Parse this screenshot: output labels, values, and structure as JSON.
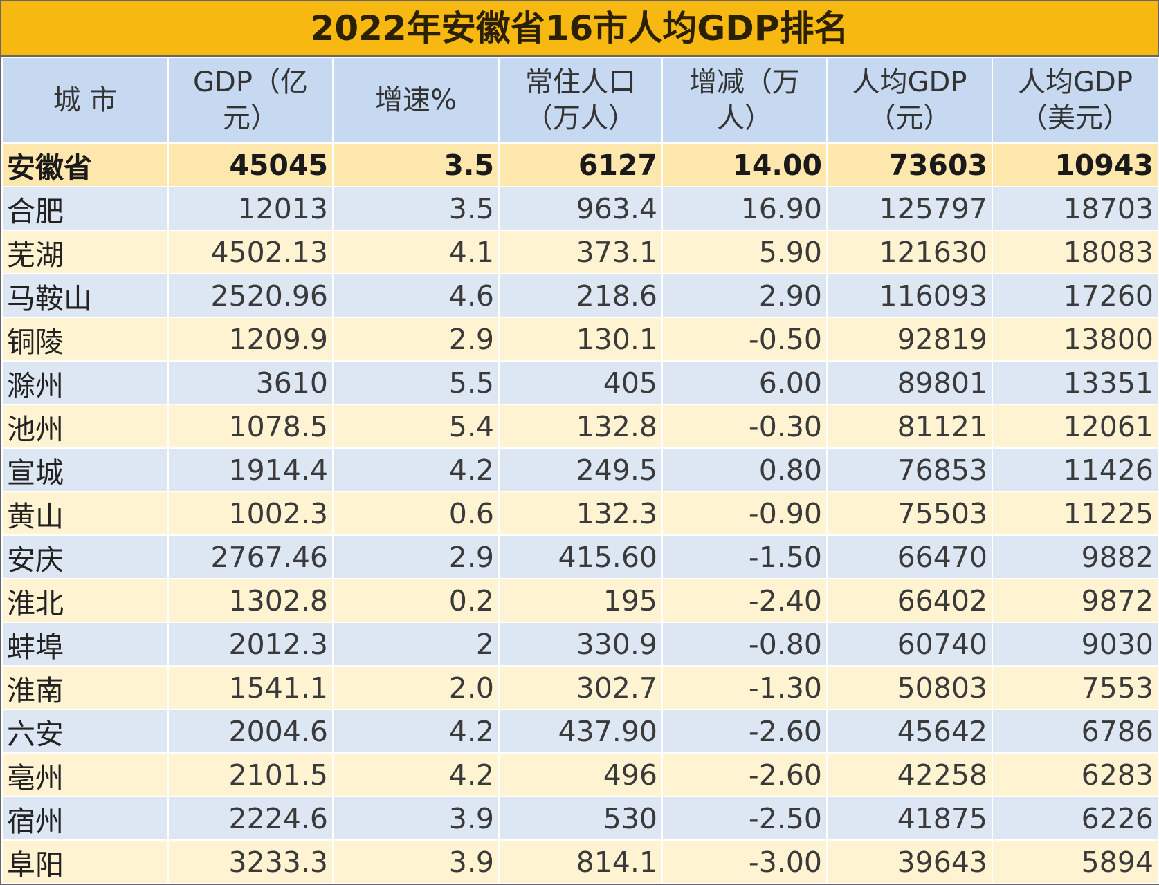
{
  "title": "2022年安徽省16市人均GDP排名",
  "table": {
    "header": [
      "城 市",
      "GDP（亿元）",
      "增速%",
      "常住人口（万人）",
      "增减（万人）",
      "人均GDP（元）",
      "人均GDP（美元）"
    ],
    "rows": [
      [
        "安徽省",
        "45045",
        "3.5",
        "6127",
        "14.00",
        "73603",
        "10943"
      ],
      [
        "合肥",
        "12013",
        "3.5",
        "963.4",
        "16.90",
        "125797",
        "18703"
      ],
      [
        "芜湖",
        "4502.13",
        "4.1",
        "373.1",
        "5.90",
        "121630",
        "18083"
      ],
      [
        "马鞍山",
        "2520.96",
        "4.6",
        "218.6",
        "2.90",
        "116093",
        "17260"
      ],
      [
        "铜陵",
        "1209.9",
        "2.9",
        "130.1",
        "-0.50",
        "92819",
        "13800"
      ],
      [
        "滁州",
        "3610",
        "5.5",
        "405",
        "6.00",
        "89801",
        "13351"
      ],
      [
        "池州",
        "1078.5",
        "5.4",
        "132.8",
        "-0.30",
        "81121",
        "12061"
      ],
      [
        "宣城",
        "1914.4",
        "4.2",
        "249.5",
        "0.80",
        "76853",
        "11426"
      ],
      [
        "黄山",
        "1002.3",
        "0.6",
        "132.3",
        "-0.90",
        "75503",
        "11225"
      ],
      [
        "安庆",
        "2767.46",
        "2.9",
        "415.60",
        "-1.50",
        "66470",
        "9882"
      ],
      [
        "淮北",
        "1302.8",
        "0.2",
        "195",
        "-2.40",
        "66402",
        "9872"
      ],
      [
        "蚌埠",
        "2012.3",
        "2",
        "330.9",
        "-0.80",
        "60740",
        "9030"
      ],
      [
        "淮南",
        "1541.1",
        "2.0",
        "302.7",
        "-1.30",
        "50803",
        "7553"
      ],
      [
        "六安",
        "2004.6",
        "4.2",
        "437.90",
        "-2.60",
        "45642",
        "6786"
      ],
      [
        "亳州",
        "2101.5",
        "4.2",
        "496",
        "-2.60",
        "42258",
        "6283"
      ],
      [
        "宿州",
        "2224.6",
        "3.9",
        "530",
        "-2.50",
        "41875",
        "6226"
      ],
      [
        "阜阳",
        "3233.3",
        "3.9",
        "814.1",
        "-3.00",
        "39643",
        "5894"
      ]
    ]
  }
}
